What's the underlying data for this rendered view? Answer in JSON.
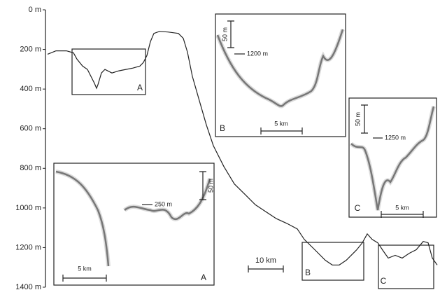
{
  "chart_data": {
    "type": "line",
    "x": [
      0,
      2.4,
      5.4,
      7.4,
      8.4,
      10,
      11.4,
      12.4,
      13.4,
      14,
      14.4,
      15.4,
      16.4,
      18.4,
      20.4,
      22.4,
      24.4,
      26.4,
      27.4,
      28.4,
      29.4,
      30.4,
      32,
      34.4,
      37.4,
      38.8,
      40,
      41.4,
      43.4,
      45.4,
      47.4,
      50.4,
      53.4,
      56.4,
      59.4,
      62.4,
      65.4,
      68.4,
      71.4,
      73.4,
      76.4,
      79.4,
      81.4,
      83.4,
      85.4,
      88.4,
      90,
      91.4,
      92.8,
      94.4,
      96,
      97.4,
      99.4,
      101.4,
      103.4,
      105.4,
      107.4,
      108.8,
      110,
      111.4
    ],
    "series": [
      {
        "color": "#222222",
        "values": [
          224,
          207,
          207,
          217,
          249,
          284,
          301,
          336,
          371,
          396,
          378,
          319,
          301,
          319,
          308,
          301,
          294,
          284,
          266,
          231,
          161,
          119,
          109,
          112,
          119,
          144,
          214,
          336,
          459,
          581,
          686,
          791,
          879,
          931,
          984,
          1019,
          1054,
          1078,
          1106,
          1159,
          1211,
          1264,
          1288,
          1288,
          1264,
          1211,
          1176,
          1131,
          1159,
          1176,
          1218,
          1253,
          1239,
          1253,
          1229,
          1211,
          1169,
          1176,
          1253,
          1288
        ]
      }
    ],
    "xlim": [
      0,
      112
    ],
    "ylim": [
      1400,
      0
    ],
    "yticks": [
      {
        "value": 0,
        "label": "0 m"
      },
      {
        "value": 200,
        "label": "200 m"
      },
      {
        "value": 400,
        "label": "400 m"
      },
      {
        "value": 600,
        "label": "600 m"
      },
      {
        "value": 800,
        "label": "800 m"
      },
      {
        "value": 1000,
        "label": "1000 m"
      },
      {
        "value": 1200,
        "label": "1200 m"
      },
      {
        "value": 1400,
        "label": "1400 m"
      }
    ],
    "boxes": [
      "A",
      "B",
      "C"
    ],
    "scale_bar": "10 km",
    "insets": [
      {
        "label": "A",
        "vertical_scale": "50 m",
        "depth_label": "250 m",
        "horizontal_scale": "5 km"
      },
      {
        "label": "B",
        "vertical_scale": "50 m",
        "depth_label": "1200 m",
        "horizontal_scale": "5 km"
      },
      {
        "label": "C",
        "vertical_scale": "50 m",
        "depth_label": "1250 m",
        "horizontal_scale": "5 km"
      }
    ]
  }
}
